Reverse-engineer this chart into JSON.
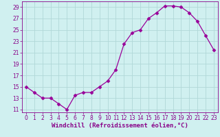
{
  "x": [
    0,
    1,
    2,
    3,
    4,
    5,
    6,
    7,
    8,
    9,
    10,
    11,
    12,
    13,
    14,
    15,
    16,
    17,
    18,
    19,
    20,
    21,
    22,
    23
  ],
  "y": [
    15,
    14,
    13,
    13,
    12,
    11,
    13.5,
    14,
    14,
    15,
    16,
    18,
    22.5,
    24.5,
    25,
    27,
    28,
    29.2,
    29.2,
    29,
    28,
    26.5,
    24,
    21.5
  ],
  "line_color": "#990099",
  "marker": "D",
  "marker_size": 2.5,
  "bg_color": "#d0f0f0",
  "grid_color": "#b0d8d8",
  "xlabel": "Windchill (Refroidissement éolien,°C)",
  "xlabel_fontsize": 6.5,
  "yticks": [
    11,
    13,
    15,
    17,
    19,
    21,
    23,
    25,
    27,
    29
  ],
  "xticks": [
    0,
    1,
    2,
    3,
    4,
    5,
    6,
    7,
    8,
    9,
    10,
    11,
    12,
    13,
    14,
    15,
    16,
    17,
    18,
    19,
    20,
    21,
    22,
    23
  ],
  "ylim": [
    10.5,
    30.0
  ],
  "xlim": [
    -0.5,
    23.5
  ],
  "tick_fontsize": 5.5,
  "tick_color": "#880088",
  "axis_color": "#880088",
  "line_width": 0.9
}
